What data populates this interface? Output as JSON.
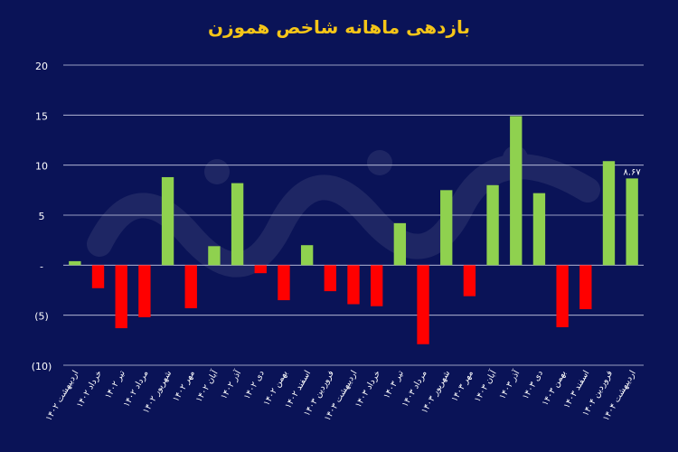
{
  "title": "بازدهی ماهانه شاخص هموزن",
  "colors": {
    "background": "#0a1357",
    "positive": "#8fd14f",
    "negative": "#ff0000",
    "grid": "#c9cde6",
    "text": "#ffffff",
    "title": "#f5c518"
  },
  "chart_data": {
    "type": "bar",
    "title": "بازدهی ماهانه شاخص هموزن",
    "xlabel": "",
    "ylabel": "",
    "ylim": [
      -10,
      20
    ],
    "yticks": [
      {
        "value": 20,
        "label": "20"
      },
      {
        "value": 15,
        "label": "15"
      },
      {
        "value": 10,
        "label": "10"
      },
      {
        "value": 5,
        "label": "5"
      },
      {
        "value": 0,
        "label": "-"
      },
      {
        "value": -5,
        "label": "(5)"
      },
      {
        "value": -10,
        "label": "(10)"
      }
    ],
    "grid": true,
    "categories": [
      "اردیبهشت ۱۴۰۲",
      "خرداد ۱۴۰۲",
      "تیر ۱۴۰۲",
      "مرداد ۱۴۰۲",
      "شهریور ۱۴۰۲",
      "مهر ۱۴۰۲",
      "آبان ۱۴۰۲",
      "آذر ۱۴۰۲",
      "دی ۱۴۰۲",
      "بهمن ۱۴۰۲",
      "اسفند ۱۴۰۲",
      "فروردین ۱۴۰۳",
      "اردیبهشت ۱۴۰۳",
      "خرداد ۱۴۰۳",
      "تیر ۱۴۰۳",
      "مرداد ۱۴۰۳",
      "شهریور ۱۴۰۳",
      "مهر ۱۴۰۳",
      "آبان ۱۴۰۳",
      "آذر ۱۴۰۳",
      "دی ۱۴۰۳",
      "بهمن ۱۴۰۳",
      "اسفند ۱۴۰۳",
      "فروردین ۱۴۰۴",
      "اردیبهشت ۱۴۰۴"
    ],
    "values": [
      0.4,
      -2.3,
      -6.3,
      -5.2,
      8.8,
      -4.3,
      1.9,
      8.2,
      -0.8,
      -3.5,
      2.0,
      -2.6,
      -3.9,
      -4.1,
      4.2,
      -7.9,
      7.5,
      -3.1,
      8.0,
      14.9,
      7.2,
      -6.2,
      -4.4,
      10.4,
      8.67
    ],
    "data_labels": [
      {
        "index": 24,
        "text": "۸.۶۷"
      }
    ]
  }
}
